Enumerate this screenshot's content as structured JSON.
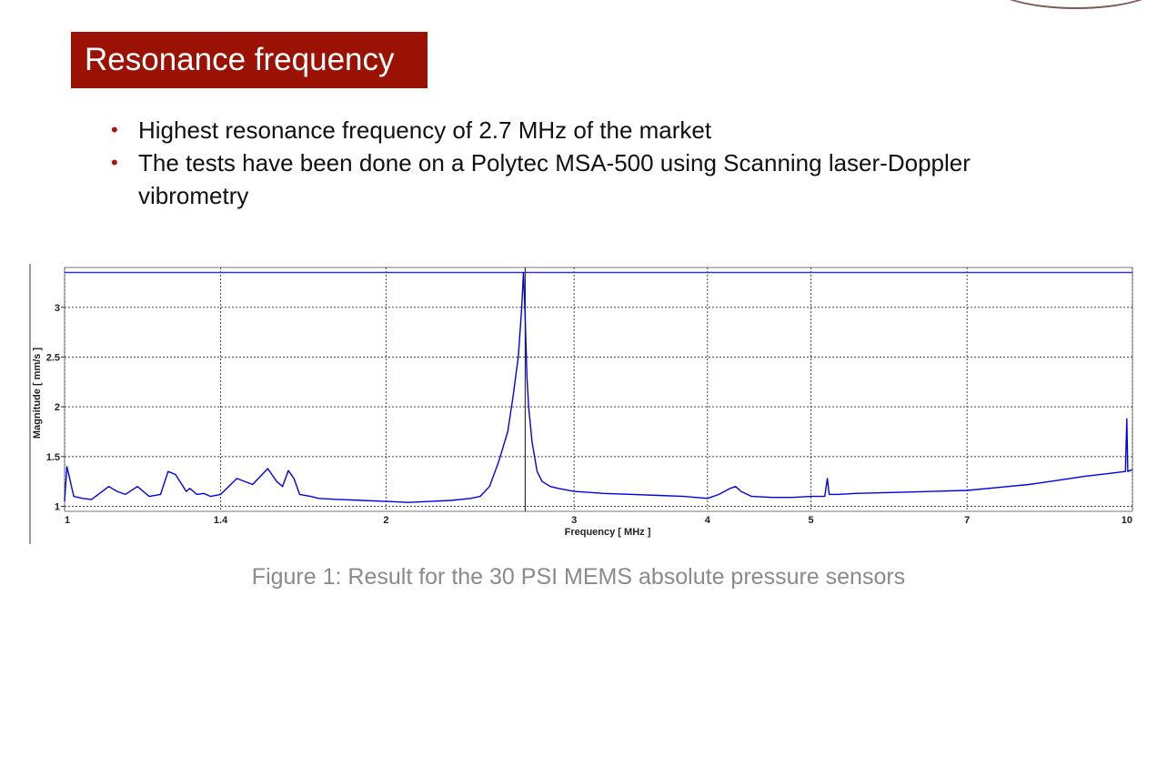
{
  "slide": {
    "title": "Resonance frequency",
    "accent_color": "#9b1205",
    "bullets": [
      "Highest resonance frequency of 2.7 MHz of the market",
      "The tests have been done on a Polytec MSA-500 using Scanning laser-Doppler vibrometry"
    ],
    "caption": "Figure 1: Result for the 30 PSI MEMS absolute pressure sensors"
  },
  "chart_data": {
    "type": "line",
    "title": "",
    "xlabel": "Frequency [ MHz ]",
    "ylabel": "Magnitude [ mm/s ]",
    "x_scale": "log",
    "xlim": [
      1,
      10
    ],
    "ylim": [
      0.95,
      3.4
    ],
    "x_ticks": [
      1,
      1.4,
      2,
      3,
      4,
      5,
      7,
      10
    ],
    "x_tick_labels": [
      "1",
      "1.4",
      "2",
      "3",
      "4",
      "5",
      "7",
      "10"
    ],
    "y_ticks": [
      1,
      1.5,
      2,
      2.5,
      3
    ],
    "y_tick_labels": [
      "1",
      "1.5",
      "2",
      "2.5",
      "3"
    ],
    "grid": true,
    "marker_x": 2.7,
    "reference_line_y": 3.35,
    "line_color": "#0000ee",
    "series": [
      {
        "x": [
          1.0,
          1.005,
          1.01,
          1.02,
          1.04,
          1.06,
          1.1,
          1.12,
          1.14,
          1.17,
          1.2,
          1.23,
          1.25,
          1.27,
          1.3,
          1.31,
          1.33,
          1.35,
          1.37,
          1.4,
          1.45,
          1.5,
          1.55,
          1.58,
          1.6,
          1.62,
          1.64,
          1.66,
          1.7,
          1.73,
          1.8,
          1.9,
          2.0,
          2.1,
          2.2,
          2.3,
          2.4,
          2.45,
          2.5,
          2.55,
          2.6,
          2.63,
          2.66,
          2.68,
          2.69,
          2.7,
          2.71,
          2.72,
          2.74,
          2.77,
          2.8,
          2.85,
          2.9,
          3.0,
          3.2,
          3.4,
          3.6,
          3.8,
          4.0,
          4.1,
          4.2,
          4.25,
          4.3,
          4.4,
          4.6,
          4.8,
          5.0,
          5.15,
          5.18,
          5.2,
          5.3,
          5.5,
          6.0,
          6.5,
          7.0,
          7.5,
          8.0,
          8.5,
          9.0,
          9.5,
          9.85,
          9.88,
          9.9,
          9.95,
          10.0
        ],
        "y": [
          1.05,
          1.4,
          1.3,
          1.1,
          1.08,
          1.07,
          1.2,
          1.15,
          1.12,
          1.2,
          1.1,
          1.12,
          1.35,
          1.32,
          1.15,
          1.18,
          1.12,
          1.13,
          1.1,
          1.12,
          1.28,
          1.22,
          1.38,
          1.25,
          1.2,
          1.36,
          1.28,
          1.12,
          1.1,
          1.08,
          1.07,
          1.06,
          1.05,
          1.04,
          1.05,
          1.06,
          1.08,
          1.1,
          1.2,
          1.45,
          1.75,
          2.1,
          2.5,
          3.0,
          3.35,
          2.9,
          2.3,
          2.0,
          1.65,
          1.35,
          1.25,
          1.2,
          1.18,
          1.15,
          1.13,
          1.12,
          1.11,
          1.1,
          1.08,
          1.12,
          1.18,
          1.2,
          1.15,
          1.1,
          1.09,
          1.09,
          1.1,
          1.1,
          1.28,
          1.12,
          1.12,
          1.13,
          1.14,
          1.15,
          1.16,
          1.19,
          1.22,
          1.26,
          1.3,
          1.33,
          1.35,
          1.88,
          1.35,
          1.36,
          1.37
        ]
      }
    ]
  }
}
